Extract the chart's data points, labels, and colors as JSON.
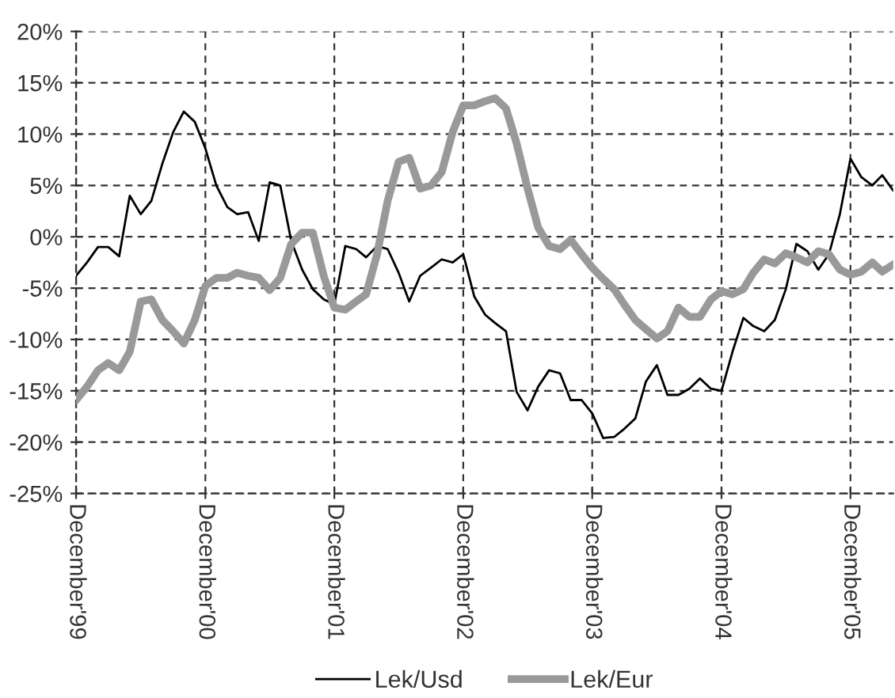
{
  "chart_data": {
    "type": "line",
    "x": [
      "1999-12",
      "2000-01",
      "2000-02",
      "2000-03",
      "2000-04",
      "2000-05",
      "2000-06",
      "2000-07",
      "2000-08",
      "2000-09",
      "2000-10",
      "2000-11",
      "2000-12",
      "2001-01",
      "2001-02",
      "2001-03",
      "2001-04",
      "2001-05",
      "2001-06",
      "2001-07",
      "2001-08",
      "2001-09",
      "2001-10",
      "2001-11",
      "2001-12",
      "2002-01",
      "2002-02",
      "2002-03",
      "2002-04",
      "2002-05",
      "2002-06",
      "2002-07",
      "2002-08",
      "2002-09",
      "2002-10",
      "2002-11",
      "2002-12",
      "2003-01",
      "2003-02",
      "2003-03",
      "2003-04",
      "2003-05",
      "2003-06",
      "2003-07",
      "2003-08",
      "2003-09",
      "2003-10",
      "2003-11",
      "2003-12",
      "2004-01",
      "2004-02",
      "2004-03",
      "2004-04",
      "2004-05",
      "2004-06",
      "2004-07",
      "2004-08",
      "2004-09",
      "2004-10",
      "2004-11",
      "2004-12",
      "2005-01",
      "2005-02",
      "2005-03",
      "2005-04",
      "2005-05",
      "2005-06",
      "2005-07",
      "2005-08",
      "2005-09",
      "2005-10",
      "2005-11",
      "2005-12",
      "2006-01",
      "2006-02",
      "2006-03",
      "2006-04"
    ],
    "series": [
      {
        "name": "Lek/Usd",
        "color": "#000000",
        "values": [
          -3.8,
          -2.5,
          -1.0,
          -1.0,
          -1.9,
          4.0,
          2.2,
          3.5,
          7.1,
          10.2,
          12.2,
          11.2,
          8.6,
          5.0,
          2.9,
          2.2,
          2.4,
          -0.4,
          5.3,
          5.0,
          -0.4,
          -3.2,
          -5.1,
          -6.1,
          -6.6,
          -0.9,
          -1.2,
          -2.0,
          -0.9,
          -1.2,
          -3.5,
          -6.3,
          -3.8,
          -3.0,
          -2.2,
          -2.5,
          -1.7,
          -5.8,
          -7.6,
          -8.4,
          -9.2,
          -15.1,
          -16.9,
          -14.6,
          -13.0,
          -13.3,
          -15.9,
          -15.9,
          -17.2,
          -19.6,
          -19.5,
          -18.7,
          -17.7,
          -14.1,
          -12.5,
          -15.4,
          -15.4,
          -14.8,
          -13.8,
          -14.8,
          -15.0,
          -11.2,
          -7.9,
          -8.7,
          -9.2,
          -8.1,
          -5.1,
          -0.7,
          -1.4,
          -3.2,
          -1.7,
          2.2,
          7.6,
          5.8,
          5.0,
          6.0,
          4.5
        ]
      },
      {
        "name": "Lek/Eur",
        "color": "#999999",
        "values": [
          -15.9,
          -14.6,
          -13.0,
          -12.3,
          -13.0,
          -11.2,
          -6.3,
          -6.1,
          -8.1,
          -9.2,
          -10.4,
          -8.1,
          -4.8,
          -4.0,
          -4.0,
          -3.5,
          -3.8,
          -4.0,
          -5.2,
          -4.0,
          -0.7,
          0.4,
          0.4,
          -3.8,
          -6.9,
          -7.1,
          -6.3,
          -5.6,
          -1.7,
          3.5,
          7.3,
          7.7,
          4.7,
          5.0,
          6.3,
          10.2,
          12.8,
          12.8,
          13.2,
          13.5,
          12.5,
          9.1,
          4.7,
          0.9,
          -0.9,
          -1.2,
          -0.3,
          -1.7,
          -3.0,
          -4.1,
          -5.1,
          -6.6,
          -8.1,
          -9.0,
          -9.9,
          -9.2,
          -6.9,
          -7.8,
          -7.8,
          -6.1,
          -5.3,
          -5.6,
          -5.1,
          -3.5,
          -2.2,
          -2.6,
          -1.6,
          -2.0,
          -2.5,
          -1.4,
          -1.7,
          -3.2,
          -3.7,
          -3.4,
          -2.5,
          -3.4,
          -2.7
        ]
      }
    ],
    "xlim": [
      "1999-12",
      "2006-04"
    ],
    "xticks": [
      {
        "value": "1999-12",
        "label": "December'99"
      },
      {
        "value": "2000-12",
        "label": "December'00"
      },
      {
        "value": "2001-12",
        "label": "December'01"
      },
      {
        "value": "2002-12",
        "label": "December'02"
      },
      {
        "value": "2003-12",
        "label": "December'03"
      },
      {
        "value": "2004-12",
        "label": "December'04"
      },
      {
        "value": "2005-12",
        "label": "December'05"
      }
    ],
    "ylim": [
      -25,
      20
    ],
    "yticks": [
      {
        "value": -25,
        "label": "-25%"
      },
      {
        "value": -20,
        "label": "-20%"
      },
      {
        "value": -15,
        "label": "-15%"
      },
      {
        "value": -10,
        "label": "-10%"
      },
      {
        "value": -5,
        "label": "-5%"
      },
      {
        "value": 0,
        "label": "0%"
      },
      {
        "value": 5,
        "label": "5%"
      },
      {
        "value": 10,
        "label": "10%"
      },
      {
        "value": 15,
        "label": "15%"
      },
      {
        "value": 20,
        "label": "20%"
      }
    ],
    "grid": true,
    "legend": "bottom",
    "line_style": "solid",
    "marker": "none"
  }
}
